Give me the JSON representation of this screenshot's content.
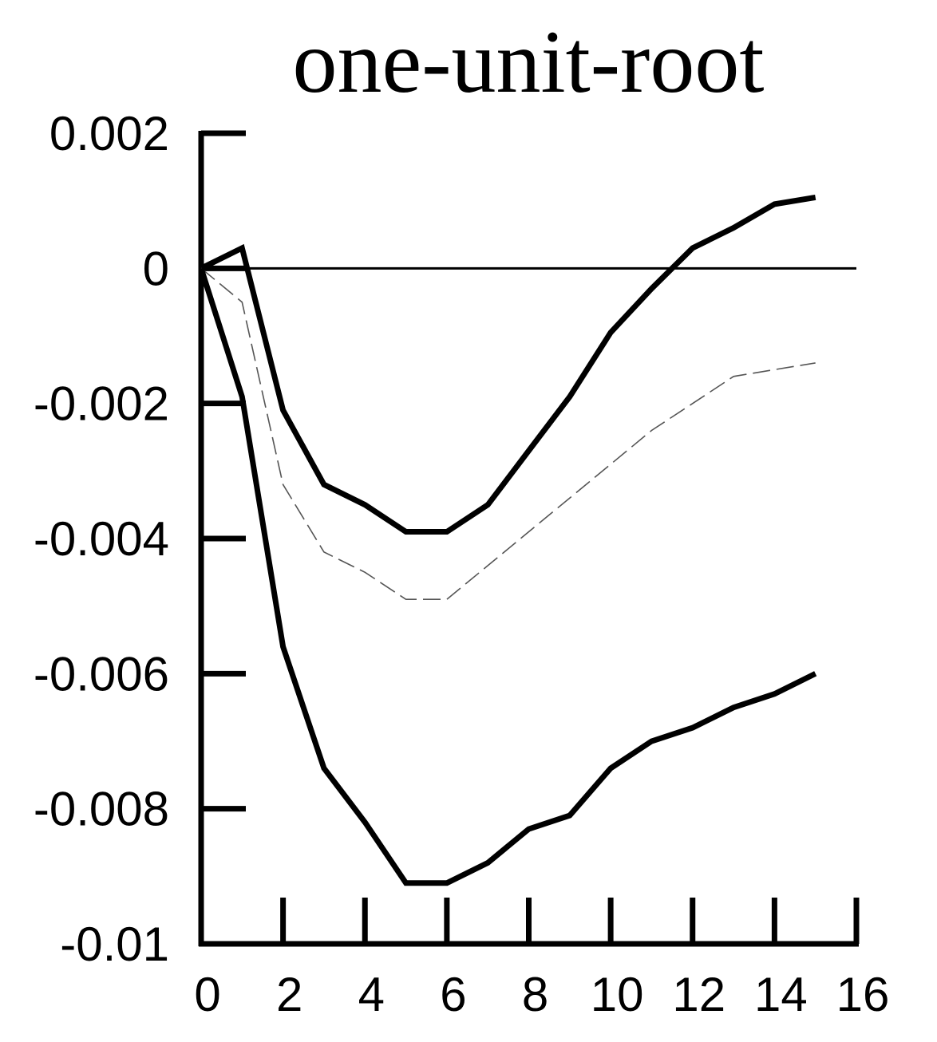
{
  "chart_data": {
    "type": "line",
    "title": "one-unit-root",
    "xlabel": "",
    "ylabel": "",
    "xlim": [
      0,
      16
    ],
    "ylim": [
      -0.01,
      0.002
    ],
    "x_ticks": [
      0,
      2,
      4,
      6,
      8,
      10,
      12,
      14,
      16
    ],
    "x_tick_labels": [
      "0",
      "2",
      "4",
      "6",
      "8",
      "10",
      "12",
      "14",
      "16"
    ],
    "y_ticks": [
      0.002,
      0,
      -0.002,
      -0.004,
      -0.006,
      -0.008,
      -0.01
    ],
    "y_tick_labels": [
      "0.002",
      "0",
      "-0.002",
      "-0.004",
      "-0.006",
      "-0.008",
      "-0.01"
    ],
    "zero_line": true,
    "grid": false,
    "legend": "none",
    "x": [
      0,
      1,
      2,
      3,
      4,
      5,
      6,
      7,
      8,
      9,
      10,
      11,
      12,
      13,
      14,
      15
    ],
    "series": [
      {
        "style": "solid-thick",
        "color": "#000000",
        "values": [
          0,
          0.0003,
          -0.0021,
          -0.0032,
          -0.0035,
          -0.0039,
          -0.0039,
          -0.0035,
          -0.0027,
          -0.0019,
          -0.00095,
          -0.0003,
          0.0003,
          0.0006,
          0.00095,
          0.00105
        ]
      },
      {
        "style": "dashed-thin",
        "color": "#000000",
        "values": [
          0,
          -0.0005,
          -0.0032,
          -0.0042,
          -0.0045,
          -0.0049,
          -0.0049,
          -0.0044,
          -0.0039,
          -0.0034,
          -0.0029,
          -0.0024,
          -0.002,
          -0.0016,
          -0.0015,
          -0.0014
        ]
      },
      {
        "style": "solid-thick",
        "color": "#000000",
        "values": [
          0,
          -0.0019,
          -0.0056,
          -0.0074,
          -0.0082,
          -0.0091,
          -0.0091,
          -0.0088,
          -0.0083,
          -0.0081,
          -0.0074,
          -0.007,
          -0.0068,
          -0.0065,
          -0.0063,
          -0.006
        ]
      }
    ]
  }
}
